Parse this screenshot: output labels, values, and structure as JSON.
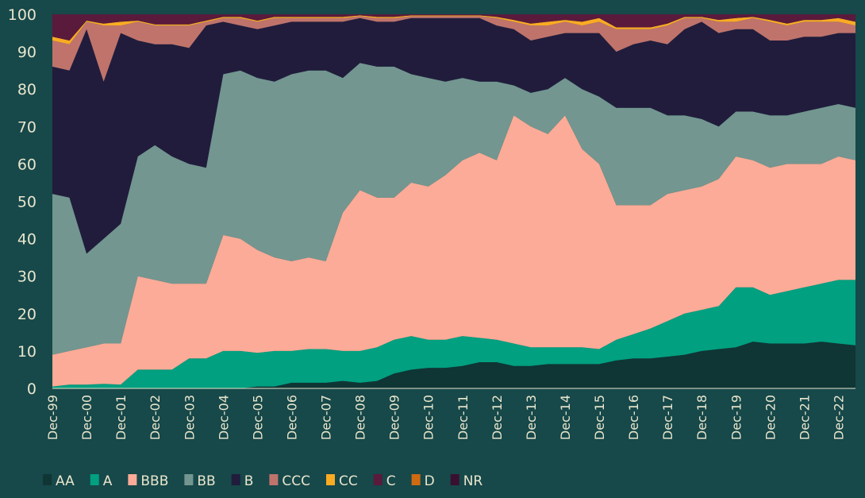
{
  "chart_data": {
    "type": "area",
    "stacked": true,
    "title": "",
    "xlabel": "",
    "ylabel": "",
    "ylim": [
      0,
      100
    ],
    "yticks": [
      0,
      10,
      20,
      30,
      40,
      50,
      60,
      70,
      80,
      90,
      100
    ],
    "x_start_year": 1999.92,
    "x_step_years": 0.5,
    "x_end_year": 2023.42,
    "xtick_labels": [
      "Dec-99",
      "Dec-00",
      "Dec-01",
      "Dec-02",
      "Dec-03",
      "Dec-04",
      "Dec-05",
      "Dec-06",
      "Dec-07",
      "Dec-08",
      "Dec-09",
      "Dec-10",
      "Dec-11",
      "Dec-12",
      "Dec-13",
      "Dec-14",
      "Dec-15",
      "Dec-16",
      "Dec-17",
      "Dec-18",
      "Dec-19",
      "Dec-20",
      "Dec-21",
      "Dec-22"
    ],
    "legend_position": "bottom",
    "grid": false,
    "series": [
      {
        "name": "AA",
        "color": "#0f3535",
        "values": [
          0,
          0,
          0,
          0,
          0,
          0,
          0,
          0,
          0,
          0,
          0,
          0,
          0.5,
          0.5,
          1.5,
          1.5,
          1.5,
          2,
          1.5,
          2,
          4,
          5,
          5.5,
          5.5,
          6,
          7,
          7,
          6,
          6,
          6.5,
          6.5,
          6.5,
          6.5,
          7.5,
          8,
          8,
          8.5,
          9,
          10,
          10.5,
          11,
          12.5,
          12,
          12,
          12,
          12.5,
          12,
          11.5
        ]
      },
      {
        "name": "A",
        "color": "#00a080",
        "values": [
          0.5,
          1,
          1,
          1.2,
          1,
          5,
          5,
          5,
          8,
          8,
          10,
          10,
          9,
          9.5,
          8.5,
          9,
          9,
          8,
          8.5,
          9,
          9,
          9,
          7.5,
          7.5,
          8,
          6.5,
          6,
          6,
          5,
          4.5,
          4.5,
          4.5,
          4,
          5.5,
          6.5,
          8,
          9.5,
          11,
          11,
          11.5,
          16,
          14.5,
          13,
          14,
          15,
          15.5,
          17,
          17.5
        ]
      },
      {
        "name": "BBB",
        "color": "#fbab97",
        "values": [
          8.5,
          9,
          10,
          10.8,
          11,
          25,
          24,
          23,
          20,
          20,
          31,
          30,
          27.5,
          25,
          24,
          24.5,
          23.5,
          37,
          43,
          40,
          38,
          41,
          41,
          44,
          47,
          49.5,
          48,
          61,
          59,
          57,
          62,
          53,
          49.5,
          36,
          34.5,
          33,
          34,
          33,
          33,
          34,
          35,
          34,
          34,
          34,
          33,
          32,
          33,
          32
        ]
      },
      {
        "name": "BB",
        "color": "#739690",
        "values": [
          43,
          41,
          25,
          28,
          32,
          32,
          36,
          34,
          32,
          31,
          43,
          45,
          46,
          47,
          50,
          50,
          51,
          36,
          34,
          35,
          35,
          29,
          29,
          25,
          22,
          19,
          21,
          8,
          9,
          12,
          10,
          16,
          18,
          26,
          26,
          26,
          21,
          20,
          18,
          14,
          12,
          13,
          14,
          13,
          14,
          15,
          14,
          14
        ]
      },
      {
        "name": "B",
        "color": "#211c3c",
        "values": [
          34,
          34,
          60,
          42,
          51,
          31,
          27,
          30,
          31,
          38,
          14,
          12,
          13,
          15,
          14,
          13,
          13,
          15,
          12,
          12,
          12,
          15,
          16,
          17,
          16,
          17,
          15,
          15,
          14,
          14,
          12,
          15,
          17,
          15,
          17,
          18,
          19,
          23,
          26,
          25,
          22,
          22,
          20,
          20,
          20,
          19,
          19,
          20
        ]
      },
      {
        "name": "CCC",
        "color": "#c0736b",
        "values": [
          7,
          7,
          2,
          15,
          2,
          5,
          5,
          5,
          6,
          1,
          1,
          2,
          2,
          2,
          1,
          1,
          1,
          1,
          0.5,
          1,
          1,
          0.5,
          0.5,
          0.5,
          0.5,
          0.5,
          2,
          2,
          4,
          3,
          3,
          2,
          3,
          6,
          4,
          3,
          5,
          3,
          1,
          3,
          2,
          3,
          5,
          4,
          4,
          4,
          3,
          2
        ]
      },
      {
        "name": "CC",
        "color": "#fbab22",
        "values": [
          1,
          1,
          0.3,
          0.5,
          1,
          0.3,
          0.3,
          0.3,
          0.3,
          0.3,
          0.3,
          0.3,
          0.3,
          0.3,
          0.3,
          0.3,
          0.3,
          0.3,
          0.2,
          0.3,
          0.3,
          0.2,
          0.2,
          0.2,
          0.2,
          0.2,
          0.3,
          0.5,
          0.5,
          1,
          0.5,
          1,
          1,
          0.5,
          0.5,
          0.5,
          0.5,
          0.3,
          0.3,
          0.5,
          1,
          0.3,
          0.5,
          0.5,
          0.5,
          0.5,
          1,
          1
        ]
      },
      {
        "name": "C",
        "color": "#5a1a3c",
        "values": [
          6,
          7,
          1.7,
          2.5,
          2,
          1.7,
          2.7,
          2.7,
          2.7,
          1.7,
          0.7,
          0.7,
          1.7,
          0.7,
          0.7,
          0.7,
          0.7,
          0.7,
          0.3,
          0.7,
          0.7,
          0.3,
          0.3,
          0.3,
          0.3,
          0.3,
          0.7,
          1.5,
          2.5,
          2,
          1.5,
          2,
          1,
          3.5,
          3.5,
          3.5,
          2.5,
          0.7,
          0.7,
          1.5,
          1,
          0.7,
          1.5,
          2.5,
          1.5,
          1.5,
          1,
          2
        ]
      },
      {
        "name": "D",
        "color": "#d06a10",
        "values": [
          0,
          0,
          0,
          0,
          0,
          0,
          0,
          0,
          0,
          0,
          0,
          0,
          0,
          0,
          0,
          0,
          0,
          0,
          0,
          0,
          0,
          0,
          0,
          0,
          0,
          0,
          0,
          0,
          0,
          0,
          0,
          0,
          0,
          0,
          0,
          0,
          0,
          0,
          0,
          0,
          0,
          0,
          0,
          0,
          0,
          0,
          0,
          0
        ]
      },
      {
        "name": "NR",
        "color": "#3a1030",
        "values": [
          0,
          0,
          0,
          0,
          0,
          0,
          0,
          0,
          0,
          0,
          0,
          0,
          0,
          0,
          0,
          0,
          0,
          0,
          0,
          0,
          0,
          0,
          0,
          0,
          0,
          0,
          0,
          0,
          0,
          0,
          0,
          0,
          0,
          0,
          0,
          0,
          0,
          0,
          0,
          0,
          0,
          0,
          0,
          0,
          0,
          0,
          0,
          0
        ]
      }
    ]
  }
}
